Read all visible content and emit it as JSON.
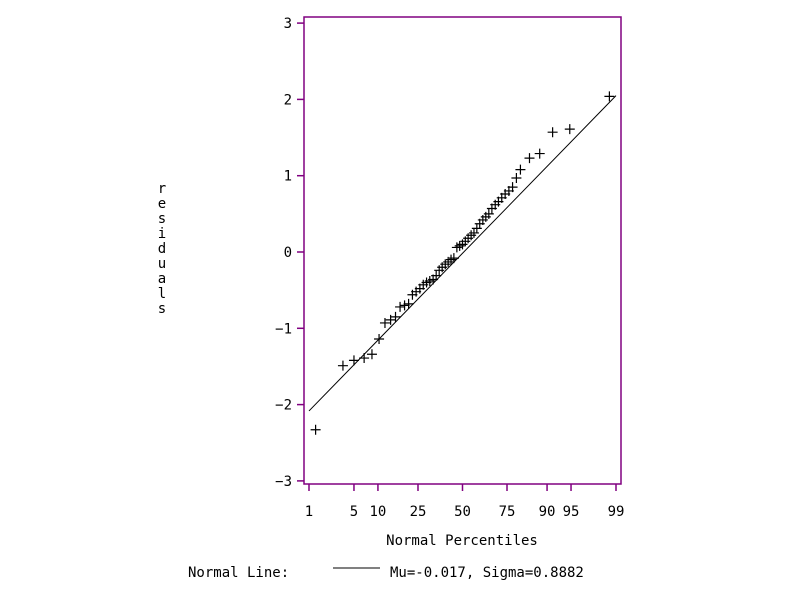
{
  "chart_data": {
    "type": "scatter",
    "title": "",
    "xlabel": "Normal Percentiles",
    "ylabel": "residuals",
    "x_ticks": [
      1,
      5,
      10,
      25,
      50,
      75,
      90,
      95,
      99
    ],
    "y_ticks": [
      -3,
      -2,
      -1,
      0,
      1,
      2,
      3
    ],
    "ylim": [
      -3,
      3
    ],
    "xlim_percentile": [
      1,
      99
    ],
    "grid": false,
    "frame_color": "#800080",
    "points": [
      {
        "pct": 1.3,
        "y": -2.33
      },
      {
        "pct": 3.5,
        "y": -1.49
      },
      {
        "pct": 5.0,
        "y": -1.42
      },
      {
        "pct": 6.8,
        "y": -1.39
      },
      {
        "pct": 8.5,
        "y": -1.34
      },
      {
        "pct": 10.3,
        "y": -1.14
      },
      {
        "pct": 12.0,
        "y": -0.93
      },
      {
        "pct": 13.8,
        "y": -0.89
      },
      {
        "pct": 15.5,
        "y": -0.85
      },
      {
        "pct": 17.2,
        "y": -0.72
      },
      {
        "pct": 19.0,
        "y": -0.7
      },
      {
        "pct": 20.7,
        "y": -0.68
      },
      {
        "pct": 22.4,
        "y": -0.56
      },
      {
        "pct": 24.1,
        "y": -0.52
      },
      {
        "pct": 25.9,
        "y": -0.48
      },
      {
        "pct": 27.6,
        "y": -0.43
      },
      {
        "pct": 29.3,
        "y": -0.4
      },
      {
        "pct": 31.0,
        "y": -0.38
      },
      {
        "pct": 32.8,
        "y": -0.36
      },
      {
        "pct": 34.5,
        "y": -0.31
      },
      {
        "pct": 36.2,
        "y": -0.24
      },
      {
        "pct": 37.9,
        "y": -0.2
      },
      {
        "pct": 39.7,
        "y": -0.16
      },
      {
        "pct": 41.4,
        "y": -0.13
      },
      {
        "pct": 43.1,
        "y": -0.1
      },
      {
        "pct": 44.8,
        "y": -0.08
      },
      {
        "pct": 46.6,
        "y": 0.06
      },
      {
        "pct": 48.3,
        "y": 0.08
      },
      {
        "pct": 50.0,
        "y": 0.1
      },
      {
        "pct": 51.7,
        "y": 0.14
      },
      {
        "pct": 53.4,
        "y": 0.18
      },
      {
        "pct": 55.2,
        "y": 0.22
      },
      {
        "pct": 56.9,
        "y": 0.25
      },
      {
        "pct": 58.6,
        "y": 0.31
      },
      {
        "pct": 60.3,
        "y": 0.37
      },
      {
        "pct": 62.1,
        "y": 0.42
      },
      {
        "pct": 63.8,
        "y": 0.46
      },
      {
        "pct": 65.5,
        "y": 0.5
      },
      {
        "pct": 67.2,
        "y": 0.57
      },
      {
        "pct": 69.0,
        "y": 0.62
      },
      {
        "pct": 70.7,
        "y": 0.66
      },
      {
        "pct": 72.4,
        "y": 0.71
      },
      {
        "pct": 74.1,
        "y": 0.76
      },
      {
        "pct": 75.9,
        "y": 0.8
      },
      {
        "pct": 77.6,
        "y": 0.85
      },
      {
        "pct": 79.3,
        "y": 0.97
      },
      {
        "pct": 81.0,
        "y": 1.08
      },
      {
        "pct": 84.5,
        "y": 1.23
      },
      {
        "pct": 87.9,
        "y": 1.29
      },
      {
        "pct": 91.4,
        "y": 1.57
      },
      {
        "pct": 94.8,
        "y": 1.61
      },
      {
        "pct": 98.7,
        "y": 2.04
      }
    ],
    "normal_line": {
      "mu": -0.017,
      "sigma": 0.8882
    }
  },
  "labels": {
    "xlabel": "Normal Percentiles",
    "ylabel_letters": [
      "r",
      "e",
      "s",
      "i",
      "d",
      "u",
      "a",
      "l",
      "s"
    ],
    "legend_prefix": "Normal Line:",
    "legend_text": "Mu=-0.017, Sigma=0.8882"
  }
}
